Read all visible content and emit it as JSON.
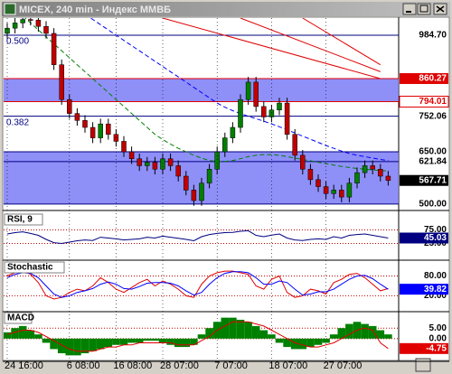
{
  "window_title": "MICEX, 240 min - Индекс ММВБ",
  "chart_data": {
    "type": "candlestick",
    "categories": [
      "24 16:00",
      null,
      null,
      null,
      null,
      null,
      null,
      null,
      "6 08:00",
      null,
      null,
      null,
      null,
      null,
      "16 08:00",
      null,
      null,
      null,
      null,
      null,
      "28 07:00",
      null,
      null,
      null,
      null,
      null,
      null,
      "7 07:00",
      null,
      null,
      null,
      null,
      null,
      null,
      "18 07:00",
      null,
      null,
      null,
      null,
      null,
      null,
      "27 07:00",
      null,
      null,
      null,
      null,
      null,
      null,
      null,
      null
    ],
    "open": [
      990,
      1005,
      1020,
      1030,
      1028,
      1010,
      990,
      900,
      800,
      760,
      740,
      720,
      690,
      730,
      700,
      680,
      650,
      630,
      610,
      620,
      600,
      630,
      610,
      580,
      540,
      510,
      560,
      600,
      650,
      690,
      720,
      800,
      850,
      780,
      750,
      770,
      790,
      700,
      640,
      600,
      570,
      550,
      530,
      540,
      520,
      560,
      590,
      610,
      600,
      580
    ],
    "high": [
      1020,
      1035,
      1045,
      1045,
      1043,
      1025,
      1005,
      915,
      815,
      775,
      755,
      735,
      745,
      745,
      715,
      695,
      665,
      645,
      635,
      635,
      645,
      645,
      625,
      595,
      555,
      575,
      615,
      665,
      705,
      735,
      815,
      865,
      865,
      795,
      785,
      805,
      805,
      715,
      655,
      615,
      585,
      565,
      555,
      555,
      575,
      605,
      625,
      625,
      615,
      595
    ],
    "low": [
      975,
      990,
      1005,
      1013,
      995,
      975,
      885,
      785,
      745,
      725,
      705,
      675,
      675,
      685,
      665,
      635,
      615,
      595,
      595,
      585,
      585,
      595,
      565,
      525,
      495,
      495,
      545,
      585,
      635,
      675,
      705,
      785,
      765,
      735,
      735,
      755,
      685,
      625,
      585,
      555,
      535,
      515,
      515,
      505,
      505,
      545,
      575,
      585,
      565,
      553
    ],
    "close": [
      1005,
      1020,
      1030,
      1028,
      1010,
      990,
      900,
      800,
      760,
      740,
      720,
      690,
      730,
      700,
      680,
      650,
      630,
      610,
      620,
      600,
      630,
      610,
      580,
      540,
      510,
      560,
      600,
      650,
      690,
      720,
      800,
      850,
      780,
      750,
      770,
      790,
      700,
      640,
      600,
      570,
      550,
      530,
      540,
      520,
      560,
      590,
      610,
      600,
      580,
      567.71
    ],
    "up_color": "#008000",
    "down_color": "#c00000",
    "ylim": [
      484,
      1034
    ],
    "grid": true,
    "band_color": "#7b7bf7",
    "bands": [
      [
        794.01,
        860.27
      ],
      [
        500,
        650
      ]
    ],
    "levels": [
      {
        "value": 984.7,
        "label": "984.70",
        "color": "#000080",
        "style": "plain"
      },
      {
        "value": 860.27,
        "color": "#e00000",
        "style": "filled"
      },
      {
        "value": 794.01,
        "color": "#e00000",
        "style": "outlined"
      },
      {
        "value": 752.06,
        "color": "#000080",
        "style": "plain"
      },
      {
        "value": 650,
        "label": "650.00",
        "color": "#000080",
        "style": "plain"
      },
      {
        "value": 621.84,
        "color": "#000080",
        "style": "plain"
      },
      {
        "value": 500,
        "label": "500.00",
        "color": "#000080",
        "style": "plain"
      }
    ],
    "fib_labels": [
      {
        "label": "0.500",
        "value": 984.7
      },
      {
        "label": "0.382",
        "value": 752.06
      }
    ],
    "moving_averages": [
      {
        "color": "#0000ff",
        "values": [
          null,
          null,
          null,
          null,
          null,
          null,
          null,
          null,
          null,
          null,
          1045,
          1030,
          1015,
          1000,
          985,
          970,
          955,
          940,
          925,
          910,
          895,
          880,
          865,
          850,
          835,
          820,
          805,
          790,
          778,
          768,
          760,
          752,
          745,
          738,
          730,
          722,
          713,
          704,
          695,
          686,
          677,
          668,
          660,
          652,
          645,
          640,
          636,
          632,
          628,
          625
        ]
      },
      {
        "color": "#008000",
        "values": [
          null,
          null,
          1040,
          1020,
          1000,
          980,
          960,
          940,
          920,
          900,
          880,
          860,
          840,
          820,
          800,
          780,
          760,
          740,
          720,
          700,
          685,
          672,
          660,
          650,
          640,
          632,
          625,
          622,
          622,
          625,
          630,
          636,
          640,
          642,
          642,
          640,
          636,
          632,
          628,
          624,
          620,
          616,
          612,
          608,
          605,
          602,
          600,
          598,
          596,
          595
        ]
      }
    ],
    "trend_lines": [
      {
        "color": "#e00000",
        "x": [
          20,
          48
        ],
        "y": [
          1034,
          860.27
        ]
      },
      {
        "color": "#e00000",
        "x": [
          30,
          48
        ],
        "y": [
          1034,
          880
        ]
      },
      {
        "color": "#e00000",
        "x": [
          38,
          48
        ],
        "y": [
          1034,
          900
        ]
      }
    ],
    "panels": [
      {
        "type": "line",
        "title": "RSI, 9",
        "ylim": [
          -30,
          130
        ],
        "yticks": [
          {
            "value": 75,
            "label": "75.00"
          },
          {
            "value": 25,
            "label": "25.00"
          }
        ],
        "series": [
          {
            "color": "#000080",
            "tag": true,
            "values": [
              60,
              65,
              68,
              62,
              55,
              40,
              28,
              25,
              30,
              35,
              38,
              36,
              48,
              45,
              42,
              38,
              40,
              42,
              48,
              45,
              52,
              48,
              44,
              40,
              35,
              50,
              58,
              62,
              65,
              66,
              70,
              72,
              55,
              50,
              56,
              60,
              45,
              38,
              36,
              40,
              42,
              40,
              50,
              45,
              55,
              58,
              60,
              55,
              50,
              45.03
            ]
          }
        ]
      },
      {
        "type": "line",
        "title": "Stochastic",
        "ylim": [
          -23,
          120
        ],
        "yticks": [
          {
            "value": 80,
            "label": "80.00"
          },
          {
            "value": 20,
            "label": "20.00"
          }
        ],
        "series": [
          {
            "color": "#e00000",
            "values": [
              80,
              90,
              95,
              85,
              60,
              20,
              10,
              15,
              30,
              40,
              35,
              50,
              75,
              60,
              40,
              30,
              45,
              60,
              70,
              50,
              65,
              55,
              40,
              20,
              15,
              55,
              80,
              90,
              95,
              95,
              90,
              85,
              50,
              40,
              70,
              80,
              30,
              15,
              20,
              40,
              35,
              25,
              60,
              70,
              85,
              88,
              75,
              55,
              35,
              42
            ]
          },
          {
            "color": "#0000ff",
            "tag": true,
            "values": [
              75,
              85,
              90,
              88,
              75,
              50,
              25,
              15,
              20,
              30,
              35,
              42,
              55,
              62,
              55,
              42,
              40,
              48,
              58,
              60,
              60,
              58,
              50,
              35,
              22,
              30,
              55,
              75,
              88,
              93,
              93,
              90,
              75,
              55,
              55,
              65,
              60,
              40,
              22,
              25,
              32,
              32,
              40,
              55,
              70,
              80,
              82,
              72,
              55,
              39.82
            ]
          }
        ]
      },
      {
        "type": "bar",
        "title": "MACD",
        "ylim": [
          -10,
          12
        ],
        "yticks": [
          {
            "value": 5,
            "label": "5.00"
          },
          {
            "value": 0,
            "label": "0.00"
          }
        ],
        "series": [
          {
            "color": "#008000",
            "values": [
              3,
              5,
              6,
              4,
              2,
              -2,
              -5,
              -7,
              -8,
              -8,
              -7,
              -6,
              -5,
              -4,
              -3,
              -3,
              -2,
              -2,
              -1,
              -1,
              -2,
              -3,
              -4,
              -4,
              -3,
              2,
              5,
              8,
              10,
              10,
              9,
              8,
              6,
              4,
              2,
              -2,
              -4,
              -5,
              -5,
              -4,
              -3,
              -2,
              2,
              5,
              7,
              8,
              7,
              6,
              4,
              2
            ]
          },
          {
            "color": "#e00000",
            "kind": "line",
            "tag": true,
            "values": [
              2,
              3,
              4,
              4,
              3,
              1,
              -1,
              -3,
              -5,
              -6,
              -6,
              -6,
              -5,
              -4,
              -4,
              -3,
              -3,
              -2,
              -2,
              -2,
              -2,
              -2,
              -3,
              -3,
              -3,
              -1,
              1,
              4,
              6,
              8,
              8,
              8,
              7,
              6,
              4,
              2,
              0,
              -2,
              -3,
              -4,
              -4,
              -3,
              -2,
              0,
              2,
              4,
              5,
              4,
              -2,
              -4.75
            ]
          }
        ]
      }
    ]
  }
}
